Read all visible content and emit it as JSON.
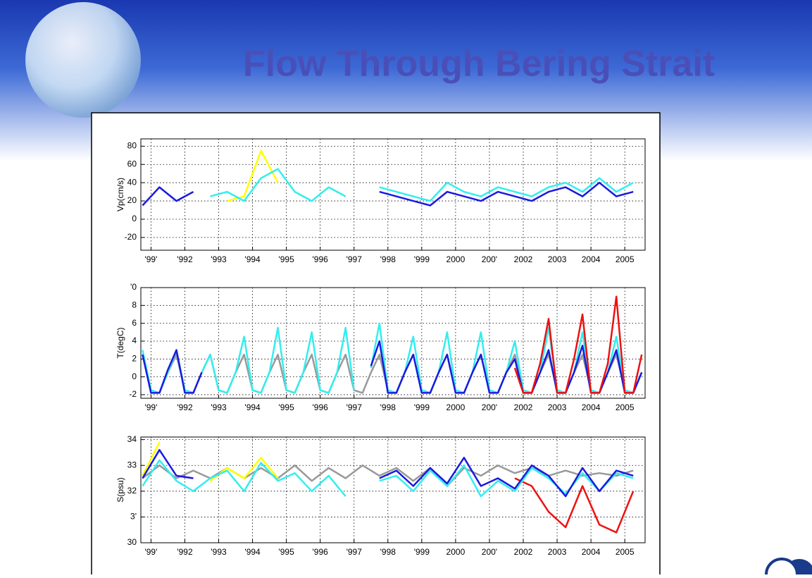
{
  "title": "Flow Through Bering Strait",
  "chart_data": [
    {
      "type": "line",
      "ylabel": "Vp(cm/s)",
      "x": [
        1990.75,
        1991.25,
        1991.75,
        1992.25,
        1992.75,
        1993.25,
        1993.75,
        1994.25,
        1994.75,
        1995.25,
        1995.75,
        1996.25,
        1996.75,
        1997.25,
        1997.75,
        1998.25,
        1998.75,
        1999.25,
        1999.75,
        2000.25,
        2000.75,
        2001.25,
        2001.75,
        2002.25,
        2002.75,
        2003.25,
        2003.75,
        2004.25,
        2004.75,
        2005.25
      ],
      "series": [
        {
          "color": "#ffff00",
          "values": [
            null,
            null,
            null,
            null,
            null,
            20,
            25,
            75,
            40,
            null,
            null,
            null,
            null,
            null,
            null,
            null,
            null,
            null,
            null,
            null,
            null,
            null,
            null,
            null,
            null,
            null,
            null,
            null,
            null,
            null
          ]
        },
        {
          "color": "#33eeee",
          "values": [
            null,
            null,
            null,
            null,
            25,
            30,
            20,
            45,
            55,
            30,
            20,
            35,
            25,
            null,
            35,
            30,
            25,
            20,
            40,
            30,
            25,
            35,
            30,
            25,
            35,
            40,
            30,
            45,
            30,
            40
          ]
        },
        {
          "color": "#1a1ae0",
          "values": [
            15,
            35,
            20,
            30,
            null,
            null,
            null,
            null,
            null,
            null,
            null,
            null,
            null,
            null,
            30,
            25,
            20,
            15,
            30,
            25,
            20,
            30,
            25,
            20,
            30,
            35,
            25,
            40,
            25,
            30
          ]
        }
      ],
      "xlim": [
        1990.7,
        2005.6
      ],
      "xticks": [
        {
          "value": 1991,
          "label": "'99'"
        },
        {
          "value": 1992,
          "label": "'992"
        },
        {
          "value": 1993,
          "label": "'993"
        },
        {
          "value": 1994,
          "label": "'994"
        },
        {
          "value": 1995,
          "label": "'995"
        },
        {
          "value": 1996,
          "label": "'996"
        },
        {
          "value": 1997,
          "label": "'997"
        },
        {
          "value": 1998,
          "label": "'998"
        },
        {
          "value": 1999,
          "label": "'999"
        },
        2000,
        {
          "value": 2001,
          "label": "200'"
        },
        2002,
        2003,
        2004,
        2005
      ],
      "ylim": [
        -34,
        88
      ],
      "yticks": [
        -20,
        0,
        20,
        40,
        60,
        80
      ],
      "grid": true
    },
    {
      "type": "line",
      "ylabel": "T(degC)",
      "x": [
        1990.75,
        1991,
        1991.25,
        1991.5,
        1991.75,
        1992,
        1992.25,
        1992.5,
        1992.75,
        1993,
        1993.25,
        1993.5,
        1993.75,
        1994,
        1994.25,
        1994.5,
        1994.75,
        1995,
        1995.25,
        1995.5,
        1995.75,
        1996,
        1996.25,
        1996.5,
        1996.75,
        1997,
        1997.25,
        1997.5,
        1997.75,
        1998,
        1998.25,
        1998.5,
        1998.75,
        1999,
        1999.25,
        1999.5,
        1999.75,
        2000,
        2000.25,
        2000.5,
        2000.75,
        2001,
        2001.25,
        2001.5,
        2001.75,
        2002,
        2002.25,
        2002.5,
        2002.75,
        2003,
        2003.25,
        2003.5,
        2003.75,
        2004,
        2004.25,
        2004.5,
        2004.75,
        2005,
        2005.25,
        2005.5
      ],
      "series": [
        {
          "color": "#999999",
          "values": [
            2.5,
            -1.5,
            -1.8,
            0.5,
            2.5,
            -1.5,
            -1.8,
            0.5,
            2.5,
            -1.5,
            -1.8,
            0.5,
            2.5,
            -1.5,
            -1.8,
            0.5,
            2.5,
            -1.5,
            -1.8,
            0.5,
            2.5,
            -1.5,
            -1.8,
            0.5,
            2.5,
            -1.5,
            -1.8,
            0.5,
            2.5,
            -1.5,
            -1.8,
            0.5,
            2.5,
            -1.5,
            -1.8,
            0.5,
            2.5,
            -1.5,
            -1.8,
            0.5,
            2.5,
            -1.5,
            -1.8,
            0.5,
            2.5,
            -1.5,
            -1.8,
            0.5,
            2.5,
            -1.5,
            -1.8,
            0.5,
            2.5,
            -1.5,
            -1.8,
            0.5,
            2.5,
            -1.5,
            -1.8,
            0.5
          ]
        },
        {
          "color": "#33eeee",
          "values": [
            3,
            -1.5,
            -1.8,
            0.5,
            3,
            -1.5,
            -1.8,
            0.5,
            2.5,
            -1.5,
            -1.8,
            0.5,
            4.5,
            -1.5,
            -1.8,
            0.5,
            5.5,
            -1.5,
            -1.8,
            0.5,
            5,
            -1.5,
            -1.8,
            0.5,
            5.5,
            -1.5,
            null,
            1,
            6,
            -1.5,
            -1.8,
            0.5,
            4.5,
            -1.5,
            -1.8,
            0.5,
            5,
            -1.5,
            -1.8,
            0.5,
            5,
            -1.5,
            -1.8,
            0.5,
            4,
            -1.5,
            -1.8,
            0.5,
            5.5,
            -1.5,
            -1.8,
            0.5,
            5,
            -1.5,
            -1.8,
            0.5,
            4.5,
            -1.5,
            -1.8,
            0.5
          ]
        },
        {
          "color": "#1a1ae0",
          "values": [
            2.5,
            -1.8,
            -1.8,
            0.8,
            3,
            -1.8,
            -1.8,
            0.5,
            null,
            null,
            null,
            null,
            null,
            null,
            null,
            null,
            null,
            null,
            null,
            null,
            null,
            null,
            null,
            null,
            null,
            null,
            null,
            1.2,
            4,
            -1.8,
            -1.8,
            0.5,
            2.5,
            -1.8,
            -1.8,
            0.5,
            2.5,
            -1.8,
            -1.8,
            0.5,
            2.5,
            -1.8,
            -1.8,
            0.5,
            2,
            -1.8,
            -1.8,
            0.5,
            3,
            -1.8,
            -1.8,
            0.5,
            3.5,
            -1.8,
            -1.8,
            0.5,
            3,
            -1.8,
            -1.8,
            0.5
          ]
        },
        {
          "color": "#ee1111",
          "values": [
            null,
            null,
            null,
            null,
            null,
            null,
            null,
            null,
            null,
            null,
            null,
            null,
            null,
            null,
            null,
            null,
            null,
            null,
            null,
            null,
            null,
            null,
            null,
            null,
            null,
            null,
            null,
            null,
            null,
            null,
            null,
            null,
            null,
            null,
            null,
            null,
            null,
            null,
            null,
            null,
            null,
            null,
            null,
            null,
            1,
            -1.8,
            -1.8,
            1.5,
            6.5,
            -1.8,
            -1.8,
            2,
            7,
            -1.8,
            -1.8,
            1.5,
            9,
            -1.8,
            -1.8,
            2.5
          ]
        }
      ],
      "xlim": [
        1990.7,
        2005.6
      ],
      "xticks": [
        {
          "value": 1991,
          "label": "'99'"
        },
        {
          "value": 1992,
          "label": "'992"
        },
        {
          "value": 1993,
          "label": "'993"
        },
        {
          "value": 1994,
          "label": "'994"
        },
        {
          "value": 1995,
          "label": "'995"
        },
        {
          "value": 1996,
          "label": "'996"
        },
        {
          "value": 1997,
          "label": "'997"
        },
        {
          "value": 1998,
          "label": "'998"
        },
        {
          "value": 1999,
          "label": "'999"
        },
        2000,
        {
          "value": 2001,
          "label": "200'"
        },
        2002,
        2003,
        2004,
        2005
      ],
      "ylim": [
        -2.4,
        10
      ],
      "yticks": [
        -2,
        0,
        2,
        4,
        6,
        8,
        {
          "value": 10,
          "label": "'0"
        }
      ],
      "grid": true
    },
    {
      "type": "line",
      "ylabel": "S(psu)",
      "x": [
        1990.75,
        1991.25,
        1991.75,
        1992.25,
        1992.75,
        1993.25,
        1993.75,
        1994.25,
        1994.75,
        1995.25,
        1995.75,
        1996.25,
        1996.75,
        1997.25,
        1997.75,
        1998.25,
        1998.75,
        1999.25,
        1999.75,
        2000.25,
        2000.75,
        2001.25,
        2001.75,
        2002.25,
        2002.75,
        2003.25,
        2003.75,
        2004.25,
        2004.75,
        2005.25
      ],
      "series": [
        {
          "color": "#999999",
          "values": [
            32.5,
            33,
            32.5,
            32.8,
            32.5,
            32.9,
            32.5,
            32.9,
            32.5,
            33,
            32.4,
            32.9,
            32.5,
            33,
            32.6,
            32.9,
            32.4,
            32.9,
            32.2,
            32.9,
            32.6,
            33,
            32.7,
            32.9,
            32.6,
            32.8,
            32.6,
            32.7,
            32.6,
            32.8
          ]
        },
        {
          "color": "#ffff00",
          "values": [
            32.6,
            33.9,
            null,
            null,
            32.4,
            32.9,
            32.5,
            33.3,
            32.5,
            null,
            null,
            null,
            null,
            null,
            null,
            null,
            null,
            null,
            null,
            null,
            null,
            null,
            null,
            null,
            null,
            null,
            null,
            null,
            null,
            null
          ]
        },
        {
          "color": "#ee1111",
          "values": [
            null,
            null,
            null,
            null,
            null,
            null,
            null,
            null,
            null,
            null,
            null,
            null,
            null,
            null,
            null,
            null,
            null,
            null,
            null,
            null,
            null,
            null,
            32.5,
            32.2,
            31.2,
            30.6,
            32.2,
            30.7,
            30.4,
            32
          ]
        },
        {
          "color": "#33eeee",
          "values": [
            32.2,
            33.2,
            32.4,
            32,
            32.5,
            32.8,
            32,
            33.1,
            32.4,
            32.7,
            32,
            32.6,
            31.8,
            null,
            32.4,
            32.6,
            32,
            32.8,
            32.2,
            33,
            31.8,
            32.4,
            32,
            32.9,
            32.5,
            31.9,
            32.7,
            32,
            32.7,
            32.5
          ]
        },
        {
          "color": "#1a1ae0",
          "values": [
            32.5,
            33.6,
            32.6,
            32.5,
            null,
            null,
            null,
            null,
            null,
            null,
            null,
            null,
            null,
            null,
            32.5,
            32.8,
            32.2,
            32.9,
            32.3,
            33.3,
            32.2,
            32.5,
            32.1,
            33,
            32.6,
            31.8,
            32.9,
            32,
            32.8,
            32.6
          ]
        }
      ],
      "xlim": [
        1990.7,
        2005.6
      ],
      "xticks": [
        {
          "value": 1991,
          "label": "'99'"
        },
        {
          "value": 1992,
          "label": "'992"
        },
        {
          "value": 1993,
          "label": "'993"
        },
        {
          "value": 1994,
          "label": "'994"
        },
        {
          "value": 1995,
          "label": "'995"
        },
        {
          "value": 1996,
          "label": "'996"
        },
        {
          "value": 1997,
          "label": "'997"
        },
        {
          "value": 1998,
          "label": "'998"
        },
        {
          "value": 1999,
          "label": "'999"
        },
        2000,
        {
          "value": 2001,
          "label": "200'"
        },
        2002,
        2003,
        2004,
        2005
      ],
      "ylim": [
        30,
        34.1
      ],
      "yticks": [
        30,
        {
          "value": 31,
          "label": "3'"
        },
        32,
        33,
        34
      ],
      "grid": true
    }
  ]
}
